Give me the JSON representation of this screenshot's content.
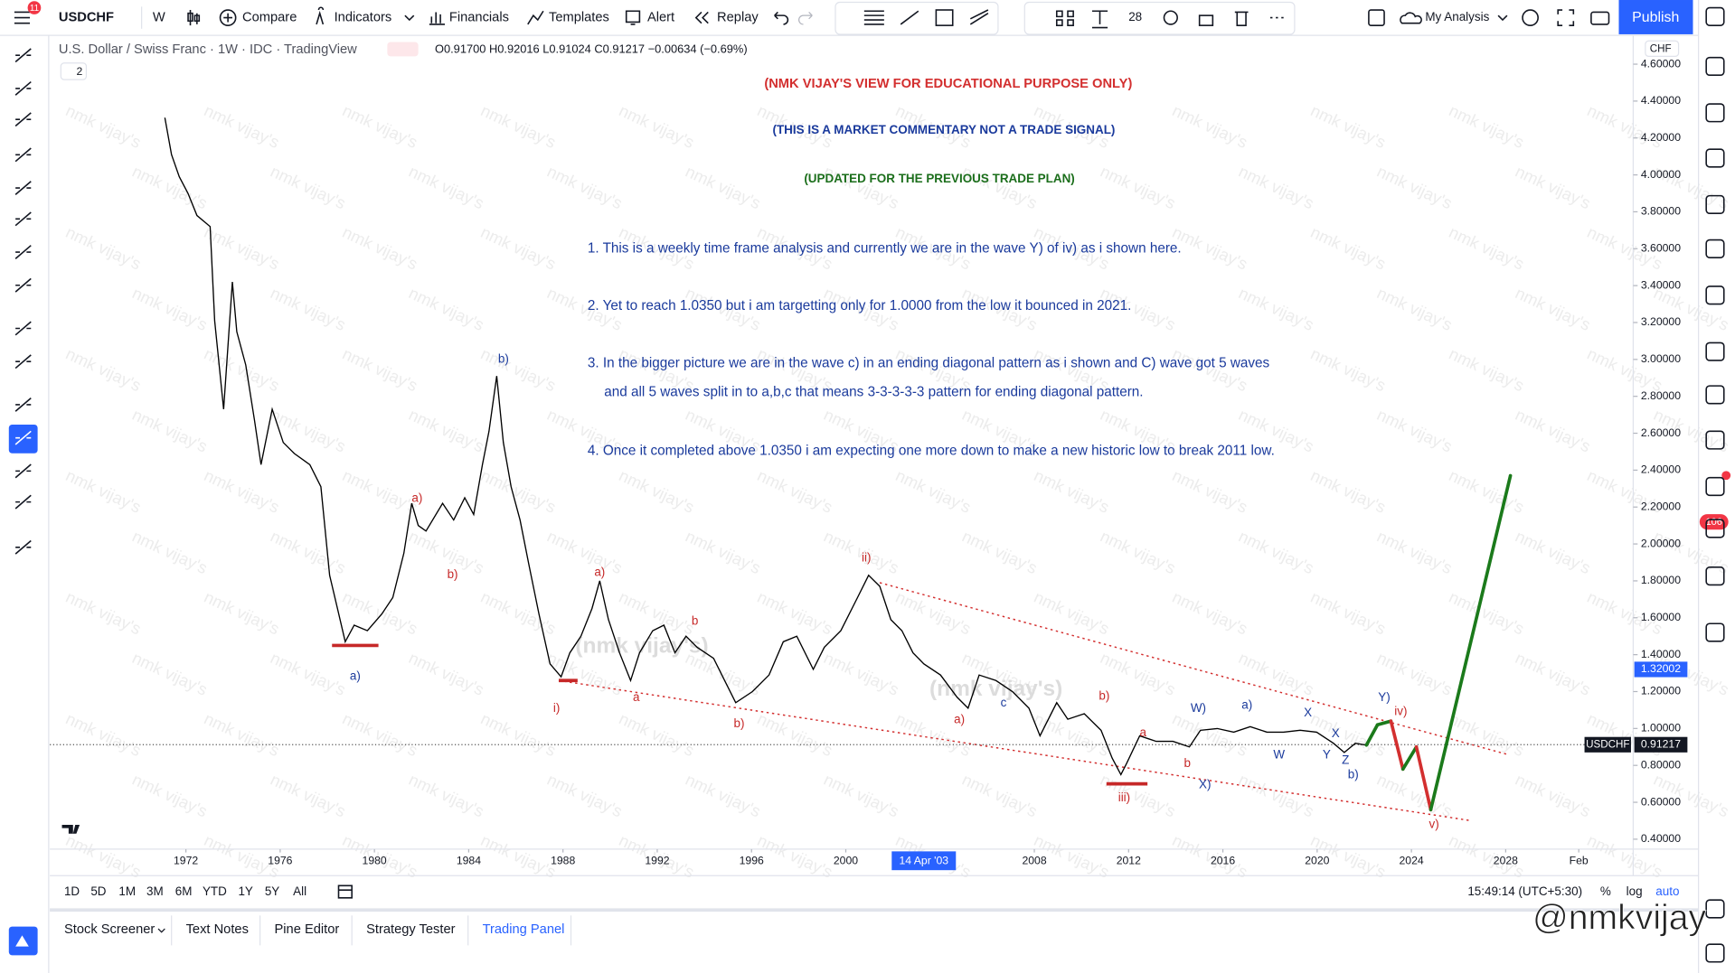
{
  "toolbar": {
    "badge": "11",
    "symbol": "USDCHF",
    "interval": "W",
    "compare": "Compare",
    "indicators": "Indicators",
    "financials": "Financials",
    "templates": "Templates",
    "alert": "Alert",
    "replay": "Replay",
    "font_size": "28",
    "layout": "My Analysis",
    "publish": "Publish"
  },
  "legend": {
    "title": "U.S. Dollar / Swiss Franc · 1W · IDC · TradingView",
    "ohlc": "O0.91700 H0.92016 L0.91024 C0.91217 −0.00634 (−0.69%)",
    "collapsed": "2"
  },
  "currency": "CHF",
  "commentary": {
    "disclaimer": "(NMK VIJAY'S VIEW FOR EDUCATIONAL PURPOSE ONLY)",
    "note": "(THIS IS A MARKET COMMENTARY NOT A TRADE SIGNAL)",
    "update": "(UPDATED FOR THE PREVIOUS TRADE PLAN)",
    "points": [
      {
        "lines": [
          "1. This is a weekly time frame analysis and currently we are in the wave Y) of iv) as i shown here."
        ]
      },
      {
        "lines": [
          "2. Yet to reach 1.0350 but i am targetting only for 1.0000 from the low it bounced in 2021."
        ]
      },
      {
        "lines": [
          "3. In the bigger picture we are in the wave c) in an ending diagonal pattern as i shown and C) wave got 5 waves",
          "and all 5 waves split in to a,b,c that means 3-3-3-3-3 pattern for ending diagonal pattern."
        ]
      },
      {
        "lines": [
          "4. Once it completed above 1.0350 i am expecting one more down to make a new historic low to break 2011 low."
        ]
      }
    ]
  },
  "watermark": "nmk vijay's",
  "watermark_big": "(nmk vijay's)",
  "wave_labels": [
    {
      "text": "a)",
      "color": "#1a3a9c"
    },
    {
      "text": "a)",
      "color": "#c62828"
    },
    {
      "text": "b)",
      "color": "#c62828"
    },
    {
      "text": "b)",
      "color": "#1a3a9c"
    },
    {
      "text": "a)",
      "color": "#c62828"
    },
    {
      "text": "i)",
      "color": "#c62828"
    },
    {
      "text": "a",
      "color": "#c62828"
    },
    {
      "text": "b",
      "color": "#c62828"
    },
    {
      "text": "b)",
      "color": "#c62828"
    },
    {
      "text": "ii)",
      "color": "#c62828"
    },
    {
      "text": "a)",
      "color": "#c62828"
    },
    {
      "text": "c",
      "color": "#1a3a9c"
    },
    {
      "text": "b)",
      "color": "#c62828"
    },
    {
      "text": "a",
      "color": "#c62828"
    },
    {
      "text": "iii)",
      "color": "#c62828"
    },
    {
      "text": "b",
      "color": "#c62828"
    },
    {
      "text": "W)",
      "color": "#1a3a9c"
    },
    {
      "text": "X)",
      "color": "#1a3a9c"
    },
    {
      "text": "a)",
      "color": "#1a3a9c"
    },
    {
      "text": "X",
      "color": "#1a3a9c"
    },
    {
      "text": "W",
      "color": "#1a3a9c"
    },
    {
      "text": "X",
      "color": "#1a3a9c"
    },
    {
      "text": "Y",
      "color": "#1a3a9c"
    },
    {
      "text": "Z",
      "color": "#1a3a9c"
    },
    {
      "text": "b)",
      "color": "#1a3a9c"
    },
    {
      "text": "Y)",
      "color": "#1a3a9c"
    },
    {
      "text": "iv)",
      "color": "#c62828"
    },
    {
      "text": "v)",
      "color": "#c62828"
    }
  ],
  "chart_data": {
    "type": "line",
    "xlim": [
      1966.225,
      2033.41
    ],
    "ylim": [
      0.346,
      4.756
    ],
    "xticks": [
      1972,
      1976,
      1980,
      1984,
      1988,
      1992,
      1996,
      2000,
      2008,
      2012,
      2016,
      2020,
      2024,
      2028,
      {
        "value": 2031.1,
        "label": "Feb"
      }
    ],
    "yticks": [
      {
        "value": 0.4,
        "label": "0.40000"
      },
      {
        "value": 0.6,
        "label": "0.60000"
      },
      {
        "value": 0.8,
        "label": "0.80000"
      },
      {
        "value": 1.0,
        "label": "1.00000"
      },
      {
        "value": 1.2,
        "label": "1.20000"
      },
      {
        "value": 1.4,
        "label": "1.40000"
      },
      {
        "value": 1.6,
        "label": "1.60000"
      },
      {
        "value": 1.8,
        "label": "1.80000"
      },
      {
        "value": 2.0,
        "label": "2.00000"
      },
      {
        "value": 2.2,
        "label": "2.20000"
      },
      {
        "value": 2.4,
        "label": "2.40000"
      },
      {
        "value": 2.6,
        "label": "2.60000"
      },
      {
        "value": 2.8,
        "label": "2.80000"
      },
      {
        "value": 3.0,
        "label": "3.00000"
      },
      {
        "value": 3.2,
        "label": "3.20000"
      },
      {
        "value": 3.4,
        "label": "3.40000"
      },
      {
        "value": 3.6,
        "label": "3.60000"
      },
      {
        "value": 3.8,
        "label": "3.80000"
      },
      {
        "value": 4.0,
        "label": "4.00000"
      },
      {
        "value": 4.2,
        "label": "4.20000"
      },
      {
        "value": 4.4,
        "label": "4.40000"
      },
      {
        "value": 4.6,
        "label": "4.60000"
      }
    ],
    "crosshair": {
      "value": 2003.31,
      "label": "14 Apr '03"
    },
    "price_tag": 1.32002,
    "last_price": 0.91217,
    "x": [
      1971.11,
      1971.39,
      1971.72,
      1972.09,
      1972.47,
      1973.03,
      1973.22,
      1973.6,
      1973.97,
      1974.16,
      1974.54,
      1974.91,
      1975.19,
      1975.66,
      1976.13,
      1976.6,
      1977.26,
      1977.73,
      1978.1,
      1978.43,
      1978.76,
      1979.14,
      1979.7,
      1980.31,
      1980.78,
      1981.25,
      1981.58,
      1981.86,
      1982.19,
      1982.89,
      1983.36,
      1983.83,
      1984.21,
      1984.58,
      1984.86,
      1985.19,
      1985.47,
      1985.8,
      1986.18,
      1986.55,
      1986.98,
      1987.45,
      1987.92,
      1988.29,
      1988.76,
      1989.23,
      1989.56,
      1989.93,
      1990.4,
      1990.87,
      1991.25,
      1991.81,
      1992.28,
      1992.75,
      1993.22,
      1993.69,
      1994.39,
      1994.86,
      1995.33,
      1996.04,
      1996.74,
      1997.35,
      1997.92,
      1998.62,
      1999.09,
      1999.79,
      2000.5,
      2000.97,
      2001.44,
      2001.91,
      2002.38,
      2002.85,
      2003.31,
      2004.02,
      2004.72,
      2005.19,
      2005.66,
      2006.37,
      2007.07,
      2007.77,
      2008.24,
      2008.95,
      2009.42,
      2010.12,
      2010.83,
      2011.3,
      2011.67,
      2011.91,
      2012.47,
      2013.17,
      2013.88,
      2014.58,
      2015.05,
      2015.76,
      2016.46,
      2017.16,
      2017.87,
      2018.57,
      2019.28,
      2019.98,
      2020.69,
      2021.15,
      2021.62,
      2022.09
    ],
    "series": [
      {
        "name": "USDCHF",
        "color": "#000000",
        "values": [
          4.31,
          4.11,
          3.99,
          3.9,
          3.78,
          3.72,
          3.21,
          2.73,
          3.42,
          3.15,
          2.97,
          2.67,
          2.43,
          2.73,
          2.55,
          2.49,
          2.43,
          2.31,
          1.83,
          1.65,
          1.47,
          1.56,
          1.53,
          1.62,
          1.71,
          1.95,
          2.22,
          2.1,
          2.07,
          2.22,
          2.13,
          2.25,
          2.16,
          2.43,
          2.61,
          2.91,
          2.55,
          2.31,
          2.13,
          1.89,
          1.62,
          1.35,
          1.28,
          1.41,
          1.5,
          1.65,
          1.8,
          1.59,
          1.41,
          1.26,
          1.41,
          1.53,
          1.56,
          1.41,
          1.5,
          1.44,
          1.38,
          1.26,
          1.14,
          1.2,
          1.29,
          1.47,
          1.5,
          1.32,
          1.44,
          1.53,
          1.71,
          1.83,
          1.77,
          1.59,
          1.53,
          1.41,
          1.35,
          1.29,
          1.17,
          1.11,
          1.29,
          1.26,
          1.2,
          1.11,
          0.96,
          1.14,
          1.05,
          1.08,
          0.99,
          0.84,
          0.75,
          0.81,
          0.96,
          0.93,
          0.93,
          0.9,
          0.99,
          1.0,
          0.98,
          1.01,
          0.98,
          0.98,
          0.99,
          0.98,
          0.92,
          0.87,
          0.92,
          0.91
        ]
      }
    ],
    "projection": {
      "x": [
        2022.09,
        2022.56,
        2023.13,
        2023.64,
        2024.21,
        2024.82,
        2028.2
      ],
      "values": [
        0.91,
        1.02,
        1.04,
        0.78,
        0.9,
        0.56,
        2.37
      ],
      "colors": [
        "#1b7a1b",
        "#1b7a1b",
        "#d32f2f",
        "#1b7a1b",
        "#d32f2f",
        "#1b7a1b"
      ]
    },
    "trendlines": [
      {
        "x": [
          2001.44,
          2028.06
        ],
        "values": [
          1.79,
          0.86
        ],
        "color": "#d32f2f"
      },
      {
        "x": [
          1987.82,
          2026.55
        ],
        "values": [
          1.26,
          0.5
        ],
        "color": "#d32f2f"
      }
    ],
    "levels": [
      {
        "x": [
          1978.2,
          1980.17
        ],
        "value": 1.45,
        "color": "#c62828"
      },
      {
        "x": [
          2011.06,
          2012.8
        ],
        "value": 0.7,
        "color": "#c62828"
      },
      {
        "x": [
          1987.82,
          1988.62
        ],
        "value": 1.26,
        "color": "#c62828"
      }
    ]
  },
  "timeframes": [
    "1D",
    "5D",
    "1M",
    "3M",
    "6M",
    "YTD",
    "1Y",
    "5Y",
    "All"
  ],
  "clock": "15:49:14 (UTC+5:30)",
  "scale_options": [
    "%",
    "log",
    "auto"
  ],
  "tabs": [
    "Stock Screener",
    "Text Notes",
    "Pine Editor",
    "Strategy Tester",
    "Trading Panel"
  ],
  "alerts_badge": "106",
  "author_watermark": "@nmkvijay"
}
